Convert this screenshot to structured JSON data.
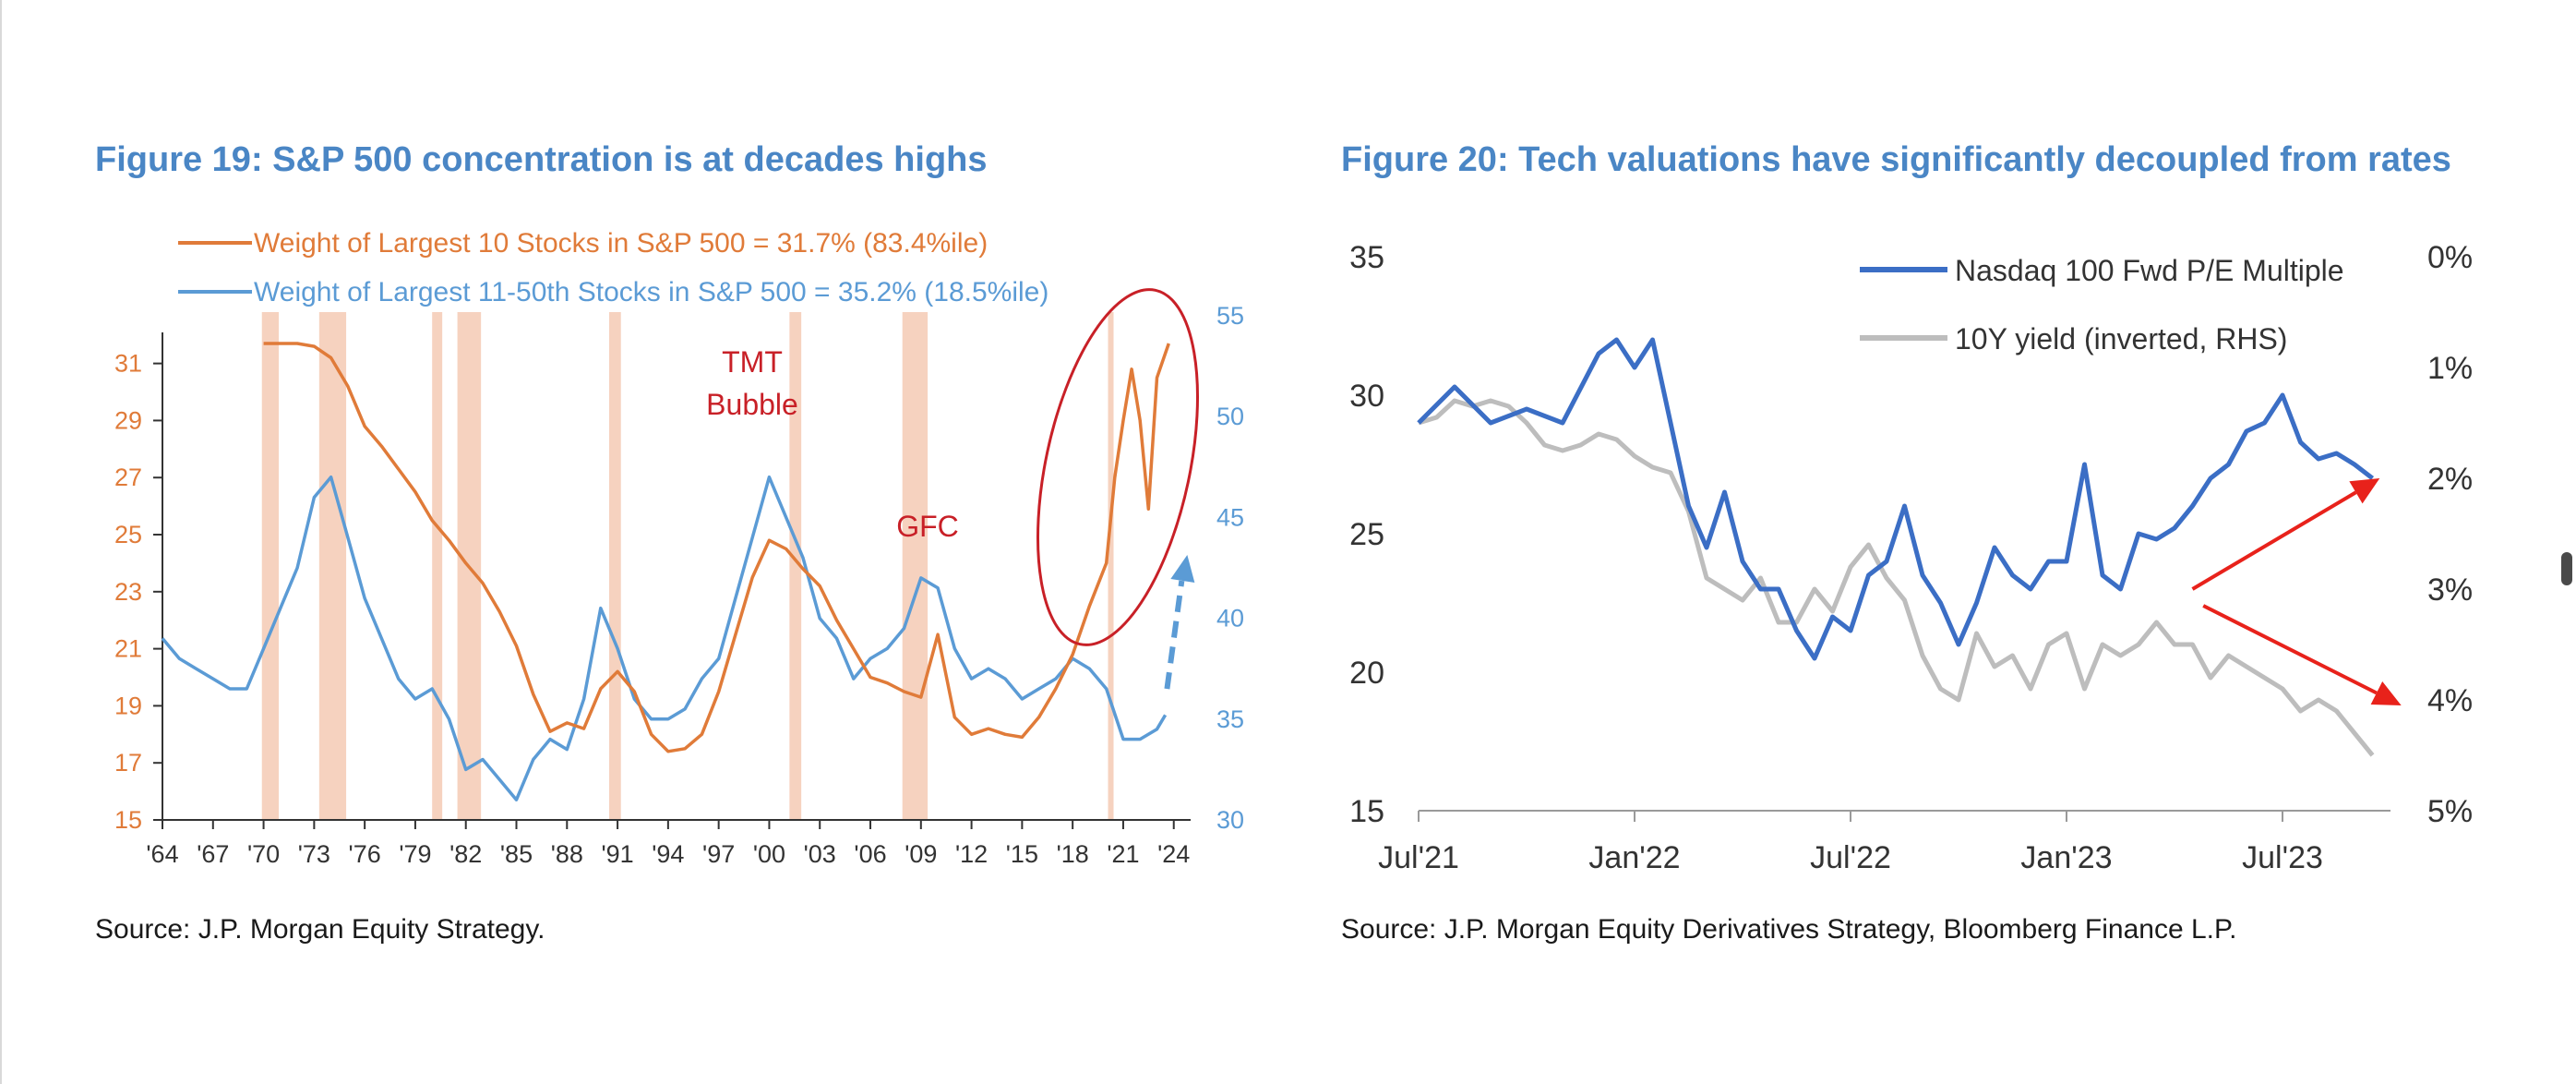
{
  "figure19": {
    "title": "Figure 19: S&P 500 concentration is at decades highs",
    "source": "Source: J.P. Morgan Equity Strategy."
  },
  "figure20": {
    "title": "Figure 20: Tech valuations have significantly decoupled from rates",
    "source": "Source: J.P. Morgan Equity Derivatives Strategy, Bloomberg Finance L.P."
  },
  "colors": {
    "title": "#4a86c5",
    "orange": "#e07b39",
    "lightblue": "#5b9bd5",
    "navy": "#3b6ec5",
    "gray": "#bdbdbd",
    "band": "#f6d2bf",
    "circle": "#c82027",
    "arrow": "#e8221b"
  },
  "chart_data": [
    {
      "type": "line",
      "title": "Figure 19: S&P 500 concentration is at decades highs",
      "x_range": [
        1964,
        2025
      ],
      "xtick_labels": [
        "'64",
        "'67",
        "'70",
        "'73",
        "'76",
        "'79",
        "'82",
        "'85",
        "'88",
        "'91",
        "'94",
        "'97",
        "'00",
        "'03",
        "'06",
        "'09",
        "'12",
        "'15",
        "'18",
        "'21",
        "'24"
      ],
      "y_left": {
        "range": [
          15,
          32
        ],
        "ticks": [
          "15",
          "17",
          "19",
          "21",
          "23",
          "25",
          "27",
          "29",
          "31"
        ]
      },
      "y_right": {
        "range": [
          30,
          56
        ],
        "ticks": [
          "30",
          "35",
          "40",
          "45",
          "50",
          "55"
        ]
      },
      "series": [
        {
          "name": "Weight of Largest 10 Stocks in S&P 500 = 31.7% (83.4%ile)",
          "axis": "left",
          "color": "#e07b39",
          "x": [
            1970,
            1972,
            1973,
            1974,
            1975,
            1976,
            1977,
            1978,
            1979,
            1980,
            1981,
            1982,
            1983,
            1984,
            1985,
            1986,
            1987,
            1988,
            1989,
            1990,
            1991,
            1992,
            1993,
            1994,
            1995,
            1996,
            1997,
            1998,
            1999,
            2000,
            2001,
            2002,
            2003,
            2004,
            2005,
            2006,
            2007,
            2008,
            2009,
            2010,
            2011,
            2012,
            2013,
            2014,
            2015,
            2016,
            2017,
            2018,
            2019,
            2020,
            2020.5,
            2021,
            2021.5,
            2022,
            2022.5,
            2023,
            2023.7
          ],
          "y": [
            31.7,
            31.7,
            31.6,
            31.2,
            30.2,
            28.8,
            28.1,
            27.3,
            26.5,
            25.5,
            24.8,
            24.0,
            23.3,
            22.3,
            21.1,
            19.4,
            18.1,
            18.4,
            18.2,
            19.6,
            20.2,
            19.5,
            18.0,
            17.4,
            17.5,
            18.0,
            19.5,
            21.5,
            23.5,
            24.8,
            24.5,
            23.8,
            23.2,
            22.0,
            21.0,
            20.0,
            19.8,
            19.5,
            19.3,
            21.5,
            18.6,
            18.0,
            18.2,
            18.0,
            17.9,
            18.6,
            19.6,
            20.8,
            22.5,
            24.0,
            27.0,
            29.0,
            30.8,
            29.0,
            25.9,
            30.5,
            31.7
          ]
        },
        {
          "name": "Weight of Largest 11-50th Stocks in S&P 500 = 35.2% (18.5%ile)",
          "axis": "right",
          "color": "#5b9bd5",
          "x": [
            1964,
            1965,
            1966,
            1967,
            1968,
            1969,
            1970,
            1971,
            1972,
            1973,
            1974,
            1975,
            1976,
            1977,
            1978,
            1979,
            1980,
            1981,
            1982,
            1983,
            1984,
            1985,
            1986,
            1987,
            1988,
            1989,
            1990,
            1991,
            1992,
            1993,
            1994,
            1995,
            1996,
            1997,
            1998,
            1999,
            2000,
            2001,
            2002,
            2003,
            2004,
            2005,
            2006,
            2007,
            2008,
            2009,
            2010,
            2011,
            2012,
            2013,
            2014,
            2015,
            2016,
            2017,
            2018,
            2019,
            2020,
            2021,
            2022,
            2023,
            2023.5
          ],
          "y": [
            39,
            38,
            37.5,
            37,
            36.5,
            36.5,
            38.5,
            40.5,
            42.5,
            46,
            47,
            44,
            41,
            39,
            37,
            36,
            36.5,
            35,
            32.5,
            33,
            32,
            31,
            33,
            34,
            33.5,
            36,
            40.5,
            38.5,
            36,
            35,
            35,
            35.5,
            37,
            38,
            41,
            44,
            47,
            45,
            43,
            40,
            39,
            37,
            38,
            38.5,
            39.5,
            42,
            41.5,
            38.5,
            37,
            37.5,
            37,
            36,
            36.5,
            37,
            38,
            37.5,
            36.5,
            34,
            34,
            34.5,
            35.2
          ]
        }
      ],
      "projection": {
        "color": "#5b9bd5",
        "x": [
          2023.6,
          2024.8
        ],
        "y_right": [
          36.5,
          42.5
        ]
      },
      "shaded_bands": [
        [
          1969.9,
          1970.9
        ],
        [
          1973.3,
          1974.9
        ],
        [
          1980.0,
          1980.6
        ],
        [
          1981.5,
          1982.9
        ],
        [
          1990.5,
          1991.2
        ],
        [
          2001.2,
          2001.9
        ],
        [
          2007.9,
          2009.4
        ],
        [
          2020.1,
          2020.4
        ]
      ],
      "annotations": [
        {
          "text_lines": [
            "TMT",
            "Bubble"
          ],
          "color": "#c82027"
        },
        {
          "text_lines": [
            "GFC"
          ],
          "color": "#c82027"
        }
      ]
    },
    {
      "type": "line",
      "title": "Figure 20: Tech valuations have significantly decoupled from rates",
      "x_range": [
        0,
        27
      ],
      "xtick_labels": [
        "Jul'21",
        "Jan'22",
        "Jul'22",
        "Jan'23",
        "Jul'23"
      ],
      "xtick_positions": [
        0,
        6,
        12,
        18,
        24
      ],
      "y_left": {
        "range": [
          15,
          35
        ],
        "ticks": [
          "15",
          "20",
          "25",
          "30",
          "35"
        ]
      },
      "y_right": {
        "range": [
          0,
          5
        ],
        "inverted": true,
        "ticks": [
          "0%",
          "1%",
          "2%",
          "3%",
          "4%",
          "5%"
        ]
      },
      "series": [
        {
          "name": "Nasdaq 100 Fwd P/E Multiple",
          "axis": "left",
          "color": "#3b6ec5",
          "x": [
            0,
            1,
            2,
            3,
            4,
            5,
            5.5,
            6,
            6.5,
            7,
            7.5,
            8,
            8.5,
            9,
            9.5,
            10,
            10.5,
            11,
            11.5,
            12,
            12.5,
            13,
            13.5,
            14,
            14.5,
            15,
            15.5,
            16,
            16.5,
            17,
            17.5,
            18,
            18.5,
            19,
            19.5,
            20,
            20.5,
            21,
            21.5,
            22,
            22.5,
            23,
            23.5,
            24,
            24.5,
            25,
            25.5,
            26,
            26.5
          ],
          "y": [
            29,
            30.3,
            29,
            29.5,
            29,
            31.5,
            32,
            31,
            32,
            29,
            26,
            24.5,
            26.5,
            24,
            23,
            23,
            21.5,
            20.5,
            22,
            21.5,
            23.5,
            24,
            26,
            23.5,
            22.5,
            21,
            22.5,
            24.5,
            23.5,
            23,
            24,
            24,
            27.5,
            23.5,
            23,
            25,
            24.8,
            25.2,
            26,
            27,
            27.5,
            28.7,
            29,
            30,
            28.3,
            27.7,
            27.9,
            27.5,
            27
          ]
        },
        {
          "name": "10Y yield (inverted, RHS)",
          "axis": "right",
          "color": "#bdbdbd",
          "x": [
            0,
            0.5,
            1,
            1.5,
            2,
            2.5,
            3,
            3.5,
            4,
            4.5,
            5,
            5.5,
            6,
            6.5,
            7,
            7.5,
            8,
            8.5,
            9,
            9.5,
            10,
            10.5,
            11,
            11.5,
            12,
            12.5,
            13,
            13.5,
            14,
            14.5,
            15,
            15.5,
            16,
            16.5,
            17,
            17.5,
            18,
            18.5,
            19,
            19.5,
            20,
            20.5,
            21,
            21.5,
            22,
            22.5,
            23,
            23.5,
            24,
            24.5,
            25,
            25.5,
            26,
            26.5
          ],
          "y_right": [
            1.5,
            1.45,
            1.3,
            1.35,
            1.3,
            1.35,
            1.5,
            1.7,
            1.75,
            1.7,
            1.6,
            1.65,
            1.8,
            1.9,
            1.95,
            2.3,
            2.9,
            3.0,
            3.1,
            2.9,
            3.3,
            3.3,
            3.0,
            3.2,
            2.8,
            2.6,
            2.9,
            3.1,
            3.6,
            3.9,
            4.0,
            3.4,
            3.7,
            3.6,
            3.9,
            3.5,
            3.4,
            3.9,
            3.5,
            3.6,
            3.5,
            3.3,
            3.5,
            3.5,
            3.8,
            3.6,
            3.7,
            3.8,
            3.9,
            4.1,
            4.0,
            4.1,
            4.3,
            4.5
          ]
        }
      ],
      "arrows": [
        {
          "from": [
            21.5,
            3.0
          ],
          "to": [
            26.7,
            2.0
          ],
          "axis": "right",
          "color": "#e8221b"
        },
        {
          "from": [
            21.8,
            3.15
          ],
          "to": [
            27.3,
            4.05
          ],
          "axis": "right",
          "color": "#e8221b"
        }
      ]
    }
  ]
}
